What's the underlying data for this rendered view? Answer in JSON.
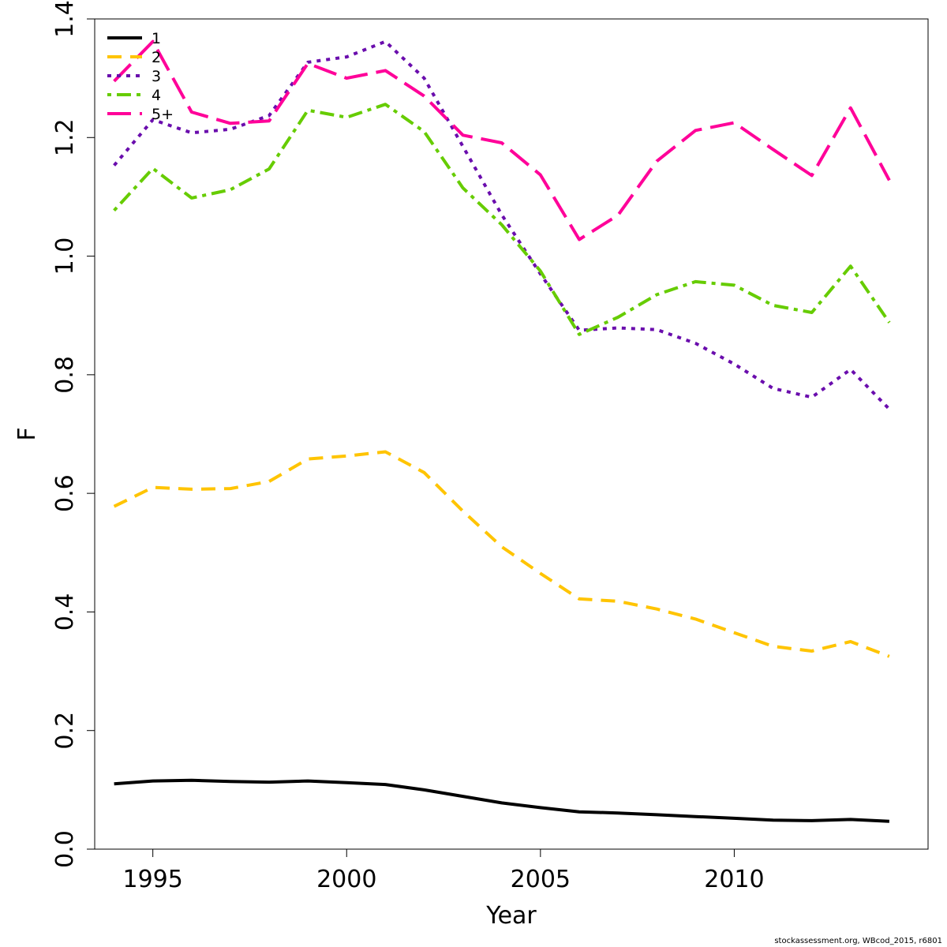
{
  "chart_data": {
    "type": "line",
    "xlabel": "Year",
    "ylabel": "F",
    "xlim": [
      1993.5,
      2015.0
    ],
    "ylim": [
      0.0,
      1.4
    ],
    "x_ticks": [
      1995,
      2000,
      2005,
      2010
    ],
    "y_ticks": [
      "0.0",
      "0.2",
      "0.4",
      "0.6",
      "0.8",
      "1.0",
      "1.2",
      "1.4"
    ],
    "grid": false,
    "legend_position": "top-left",
    "x": [
      1994,
      1995,
      1996,
      1997,
      1998,
      1999,
      2000,
      2001,
      2002,
      2003,
      2004,
      2005,
      2006,
      2007,
      2008,
      2009,
      2010,
      2011,
      2012,
      2013,
      2014
    ],
    "series": [
      {
        "name": "1",
        "color": "#000000",
        "dash": "solid",
        "values": [
          0.11,
          0.115,
          0.116,
          0.114,
          0.113,
          0.115,
          0.112,
          0.109,
          0.1,
          0.089,
          0.078,
          0.07,
          0.063,
          0.061,
          0.058,
          0.055,
          0.052,
          0.049,
          0.048,
          0.05,
          0.047
        ]
      },
      {
        "name": "2",
        "color": "#FFC400",
        "dash": "dashed",
        "values": [
          0.578,
          0.61,
          0.607,
          0.608,
          0.62,
          0.658,
          0.663,
          0.67,
          0.635,
          0.57,
          0.51,
          0.465,
          0.422,
          0.418,
          0.405,
          0.388,
          0.365,
          0.342,
          0.334,
          0.35,
          0.325
        ]
      },
      {
        "name": "3",
        "color": "#6A0DAD",
        "dash": "dotted",
        "values": [
          1.153,
          1.23,
          1.208,
          1.214,
          1.237,
          1.327,
          1.336,
          1.362,
          1.3,
          1.185,
          1.07,
          0.97,
          0.875,
          0.879,
          0.876,
          0.853,
          0.818,
          0.777,
          0.762,
          0.809,
          0.742
        ]
      },
      {
        "name": "4",
        "color": "#66CC00",
        "dash": "dotdash",
        "values": [
          1.077,
          1.148,
          1.098,
          1.112,
          1.147,
          1.246,
          1.234,
          1.256,
          1.21,
          1.115,
          1.053,
          0.975,
          0.868,
          0.897,
          0.935,
          0.957,
          0.951,
          0.917,
          0.905,
          0.983,
          0.888
        ]
      },
      {
        "name": "5+",
        "color": "#FF0099",
        "dash": "longdash",
        "values": [
          1.295,
          1.362,
          1.243,
          1.224,
          1.228,
          1.325,
          1.3,
          1.313,
          1.27,
          1.204,
          1.191,
          1.137,
          1.028,
          1.069,
          1.16,
          1.212,
          1.225,
          1.18,
          1.136,
          1.25,
          1.128
        ]
      }
    ]
  },
  "credit": "stockassessment.org, WBcod_2015, r6801"
}
